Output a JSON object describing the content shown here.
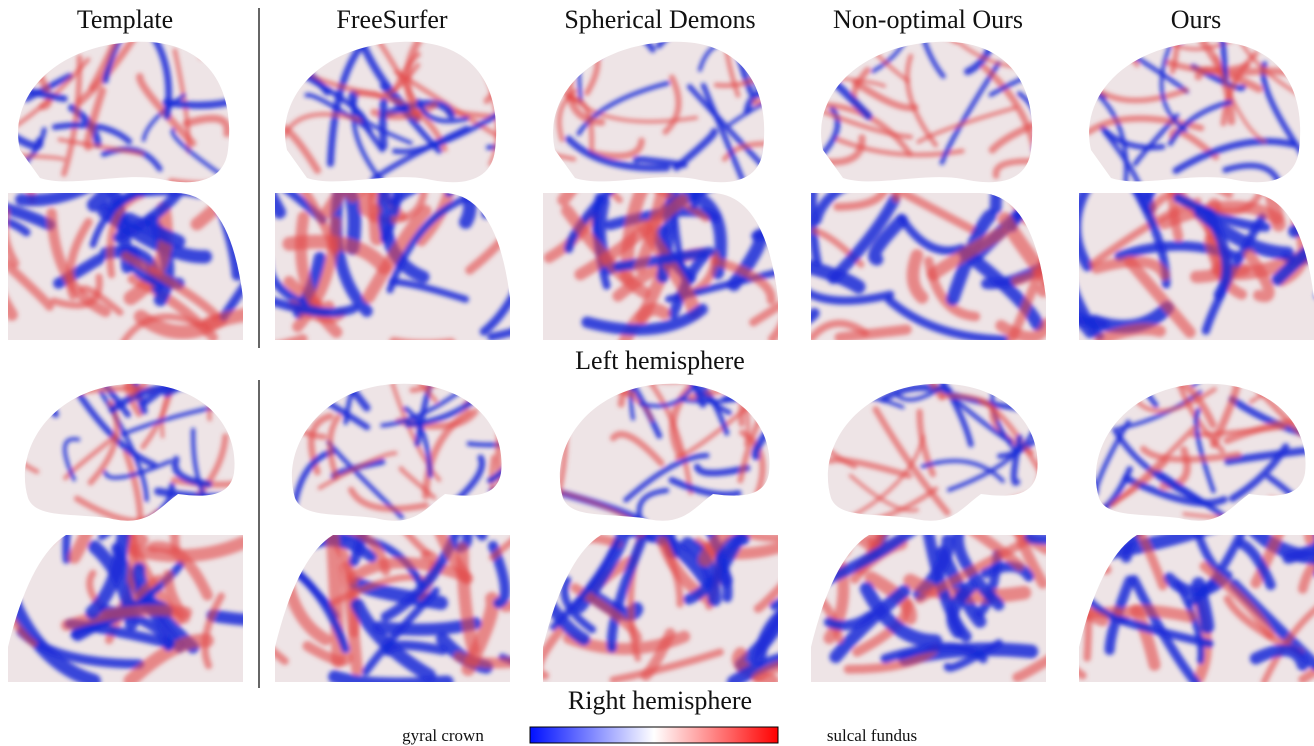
{
  "columns": [
    "Template",
    "FreeSurfer",
    "Spherical Demons",
    "Non-optimal Ours",
    "Ours"
  ],
  "rows": [
    "Left hemisphere",
    "Right hemisphere"
  ],
  "colorbar": {
    "low": "gyral crown",
    "high": "sulcal fundus"
  }
}
